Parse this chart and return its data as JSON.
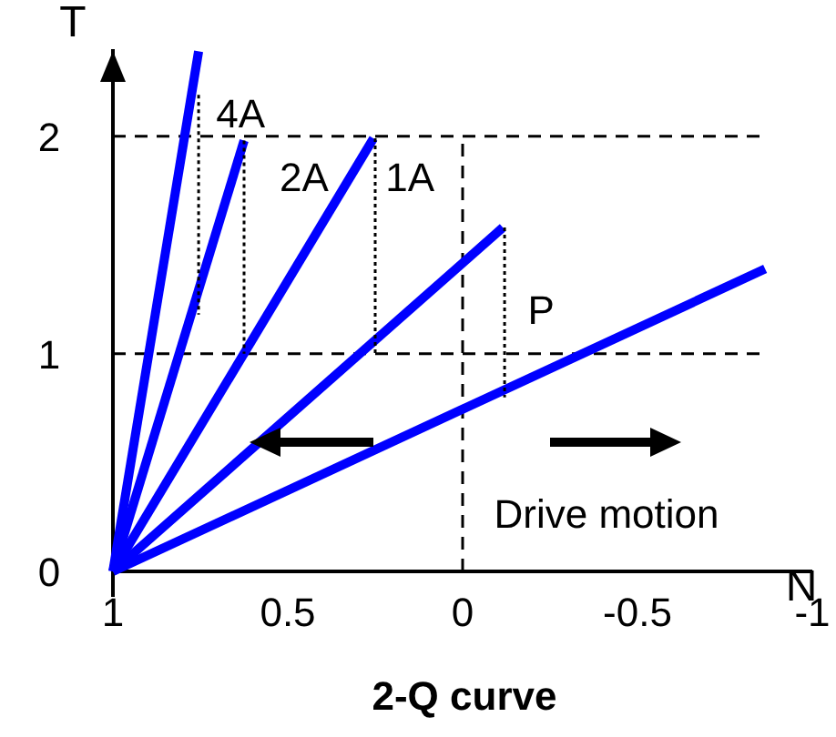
{
  "chart_data": {
    "type": "line",
    "title": "2-Q curve",
    "xlabel": "N",
    "ylabel": "T",
    "xlim": [
      1,
      -1
    ],
    "ylim": [
      0,
      2.4
    ],
    "xticks": [
      1,
      0.5,
      0,
      -0.5,
      -1
    ],
    "yticks": [
      0,
      1,
      2
    ],
    "grid": false,
    "marker": "none",
    "series": [
      {
        "name": "4A",
        "color": "#0000ff",
        "x": [
          1,
          0.755
        ],
        "values": [
          0,
          2.39
        ]
      },
      {
        "name": "2A",
        "color": "#0000ff",
        "x": [
          1,
          0.625
        ],
        "values": [
          0,
          1.98
        ]
      },
      {
        "name": "1A",
        "color": "#0000ff",
        "x": [
          1,
          0.255
        ],
        "values": [
          0,
          1.99
        ]
      },
      {
        "name": "P",
        "color": "#0000ff",
        "x": [
          1,
          -0.115
        ],
        "values": [
          0,
          1.58
        ]
      },
      {
        "color": "#0000ff",
        "x": [
          1,
          -0.865
        ],
        "values": [
          0,
          1.39
        ]
      },
      {
        "color": "#000000",
        "line_style": "dotted",
        "x": [
          0.755,
          0.755
        ],
        "values": [
          2.19,
          1.18
        ]
      },
      {
        "color": "#000000",
        "line_style": "dotted",
        "x": [
          0.625,
          0.625
        ],
        "values": [
          1.98,
          1
        ]
      },
      {
        "color": "#000000",
        "line_style": "dotted",
        "x": [
          0.25,
          0.25
        ],
        "values": [
          1.99,
          1
        ]
      },
      {
        "color": "#000000",
        "line_style": "dotted",
        "x": [
          -0.12,
          -0.12
        ],
        "values": [
          1.58,
          0.8
        ]
      }
    ],
    "ref_lines": [
      {
        "axis": "y",
        "value": 2,
        "line_style": "dashed",
        "color": "#000000"
      },
      {
        "axis": "y",
        "value": 1,
        "line_style": "dashed",
        "color": "#000000"
      },
      {
        "axis": "x",
        "value": 0,
        "line_style": "dashed",
        "color": "#000000"
      }
    ],
    "annotations": [
      "Drive motion"
    ]
  }
}
